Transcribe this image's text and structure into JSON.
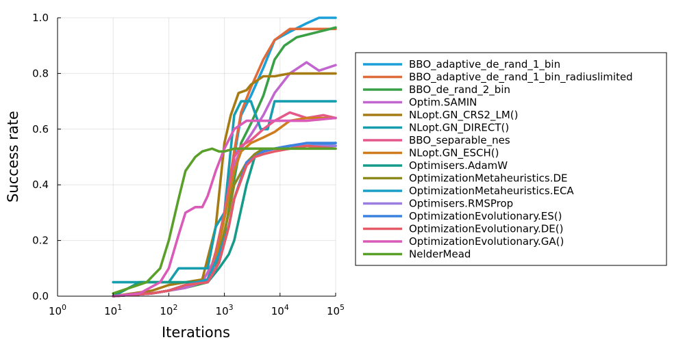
{
  "chart_data": {
    "type": "line",
    "xlabel": "Iterations",
    "ylabel": "Success rate",
    "xscale": "log10",
    "xlim": [
      1,
      100000
    ],
    "ylim": [
      0,
      1
    ],
    "grid": true,
    "legend_position": "right",
    "xticks": [
      {
        "value": 1,
        "base": "10",
        "exp": "0"
      },
      {
        "value": 10,
        "base": "10",
        "exp": "1"
      },
      {
        "value": 100,
        "base": "10",
        "exp": "2"
      },
      {
        "value": 1000,
        "base": "10",
        "exp": "3"
      },
      {
        "value": 10000,
        "base": "10",
        "exp": "4"
      },
      {
        "value": 100000,
        "base": "10",
        "exp": "5"
      }
    ],
    "yticks": [
      {
        "value": 0.0,
        "label": "0.0"
      },
      {
        "value": 0.2,
        "label": "0.2"
      },
      {
        "value": 0.4,
        "label": "0.4"
      },
      {
        "value": 0.6,
        "label": "0.6"
      },
      {
        "value": 0.8,
        "label": "0.8"
      },
      {
        "value": 1.0,
        "label": "1.0"
      }
    ],
    "series": [
      {
        "name": "BBO_adaptive_de_rand_1_bin",
        "color": "#1a9fd9",
        "points": [
          [
            10,
            0.0
          ],
          [
            50,
            0.01
          ],
          [
            100,
            0.02
          ],
          [
            200,
            0.04
          ],
          [
            500,
            0.06
          ],
          [
            700,
            0.14
          ],
          [
            1000,
            0.28
          ],
          [
            1500,
            0.5
          ],
          [
            2000,
            0.65
          ],
          [
            3000,
            0.72
          ],
          [
            5000,
            0.82
          ],
          [
            8000,
            0.92
          ],
          [
            15000,
            0.95
          ],
          [
            30000,
            0.98
          ],
          [
            50000,
            1.0
          ],
          [
            100000,
            1.0
          ]
        ]
      },
      {
        "name": "BBO_adaptive_de_rand_1_bin_radiuslimited",
        "color": "#e06b3a",
        "points": [
          [
            10,
            0.0
          ],
          [
            50,
            0.01
          ],
          [
            100,
            0.02
          ],
          [
            200,
            0.04
          ],
          [
            500,
            0.06
          ],
          [
            700,
            0.16
          ],
          [
            1000,
            0.3
          ],
          [
            1500,
            0.52
          ],
          [
            2000,
            0.66
          ],
          [
            3000,
            0.75
          ],
          [
            5000,
            0.85
          ],
          [
            8000,
            0.92
          ],
          [
            15000,
            0.96
          ],
          [
            30000,
            0.96
          ],
          [
            100000,
            0.96
          ]
        ]
      },
      {
        "name": "BBO_de_rand_2_bin",
        "color": "#3aa046",
        "points": [
          [
            10,
            0.0
          ],
          [
            50,
            0.01
          ],
          [
            100,
            0.02
          ],
          [
            200,
            0.03
          ],
          [
            500,
            0.05
          ],
          [
            700,
            0.1
          ],
          [
            1000,
            0.22
          ],
          [
            1500,
            0.42
          ],
          [
            2000,
            0.55
          ],
          [
            3000,
            0.62
          ],
          [
            5000,
            0.72
          ],
          [
            8000,
            0.85
          ],
          [
            12000,
            0.9
          ],
          [
            20000,
            0.93
          ],
          [
            50000,
            0.95
          ],
          [
            100000,
            0.965
          ]
        ]
      },
      {
        "name": "Optim.SAMIN",
        "color": "#c266cf",
        "points": [
          [
            10,
            0.0
          ],
          [
            50,
            0.01
          ],
          [
            100,
            0.02
          ],
          [
            200,
            0.03
          ],
          [
            400,
            0.05
          ],
          [
            700,
            0.14
          ],
          [
            1000,
            0.3
          ],
          [
            1500,
            0.47
          ],
          [
            2000,
            0.53
          ],
          [
            3000,
            0.58
          ],
          [
            5000,
            0.65
          ],
          [
            8000,
            0.73
          ],
          [
            15000,
            0.8
          ],
          [
            30000,
            0.84
          ],
          [
            50000,
            0.81
          ],
          [
            100000,
            0.83
          ]
        ]
      },
      {
        "name": "NLopt.GN_CRS2_LM()",
        "color": "#a67b14",
        "points": [
          [
            10,
            0.0
          ],
          [
            50,
            0.02
          ],
          [
            100,
            0.04
          ],
          [
            200,
            0.05
          ],
          [
            400,
            0.06
          ],
          [
            700,
            0.25
          ],
          [
            1000,
            0.55
          ],
          [
            1300,
            0.65
          ],
          [
            1800,
            0.73
          ],
          [
            2500,
            0.74
          ],
          [
            3000,
            0.76
          ],
          [
            5000,
            0.79
          ],
          [
            8000,
            0.79
          ],
          [
            15000,
            0.8
          ],
          [
            30000,
            0.8
          ],
          [
            100000,
            0.8
          ]
        ]
      },
      {
        "name": "NLopt.GN_DIRECT()",
        "color": "#169dae",
        "points": [
          [
            10,
            0.05
          ],
          [
            20,
            0.05
          ],
          [
            100,
            0.05
          ],
          [
            150,
            0.1
          ],
          [
            500,
            0.1
          ],
          [
            700,
            0.25
          ],
          [
            1000,
            0.3
          ],
          [
            1500,
            0.65
          ],
          [
            2000,
            0.7
          ],
          [
            3000,
            0.7
          ],
          [
            4500,
            0.6
          ],
          [
            6000,
            0.6
          ],
          [
            8000,
            0.7
          ],
          [
            100000,
            0.7
          ]
        ]
      },
      {
        "name": "BBO_separable_nes",
        "color": "#e4588a",
        "points": [
          [
            10,
            0.0
          ],
          [
            50,
            0.01
          ],
          [
            100,
            0.02
          ],
          [
            200,
            0.04
          ],
          [
            500,
            0.06
          ],
          [
            700,
            0.15
          ],
          [
            1000,
            0.3
          ],
          [
            1500,
            0.5
          ],
          [
            2000,
            0.54
          ],
          [
            3000,
            0.56
          ],
          [
            5000,
            0.6
          ],
          [
            8000,
            0.63
          ],
          [
            15000,
            0.66
          ],
          [
            30000,
            0.64
          ],
          [
            60000,
            0.65
          ],
          [
            100000,
            0.64
          ]
        ]
      },
      {
        "name": "NLopt.GN_ESCH()",
        "color": "#cf7c1f",
        "points": [
          [
            10,
            0.0
          ],
          [
            50,
            0.01
          ],
          [
            100,
            0.02
          ],
          [
            200,
            0.04
          ],
          [
            500,
            0.05
          ],
          [
            700,
            0.13
          ],
          [
            1000,
            0.28
          ],
          [
            1500,
            0.45
          ],
          [
            2000,
            0.52
          ],
          [
            3000,
            0.55
          ],
          [
            5000,
            0.57
          ],
          [
            8000,
            0.59
          ],
          [
            15000,
            0.63
          ],
          [
            30000,
            0.64
          ],
          [
            100000,
            0.64
          ]
        ]
      },
      {
        "name": "Optimisers.AdamW",
        "color": "#169a8a",
        "points": [
          [
            10,
            0.0
          ],
          [
            30,
            0.05
          ],
          [
            100,
            0.05
          ],
          [
            200,
            0.05
          ],
          [
            500,
            0.05
          ],
          [
            800,
            0.1
          ],
          [
            1200,
            0.15
          ],
          [
            1500,
            0.2
          ],
          [
            2500,
            0.4
          ],
          [
            3500,
            0.5
          ],
          [
            5000,
            0.52
          ],
          [
            8000,
            0.53
          ],
          [
            15000,
            0.54
          ],
          [
            30000,
            0.54
          ],
          [
            100000,
            0.54
          ]
        ]
      },
      {
        "name": "OptimizationMetaheuristics.DE",
        "color": "#8a8a1e",
        "points": [
          [
            10,
            0.0
          ],
          [
            50,
            0.01
          ],
          [
            100,
            0.02
          ],
          [
            200,
            0.04
          ],
          [
            500,
            0.06
          ],
          [
            800,
            0.15
          ],
          [
            1200,
            0.3
          ],
          [
            1500,
            0.4
          ],
          [
            2500,
            0.48
          ],
          [
            3500,
            0.51
          ],
          [
            5000,
            0.53
          ],
          [
            8000,
            0.53
          ],
          [
            15000,
            0.53
          ],
          [
            30000,
            0.54
          ],
          [
            100000,
            0.54
          ]
        ]
      },
      {
        "name": "OptimizationMetaheuristics.ECA",
        "color": "#1a9ec6",
        "points": [
          [
            10,
            0.0
          ],
          [
            50,
            0.01
          ],
          [
            100,
            0.02
          ],
          [
            200,
            0.04
          ],
          [
            500,
            0.06
          ],
          [
            800,
            0.15
          ],
          [
            1200,
            0.25
          ],
          [
            1500,
            0.35
          ],
          [
            2500,
            0.48
          ],
          [
            3500,
            0.5
          ],
          [
            5000,
            0.52
          ],
          [
            8000,
            0.53
          ],
          [
            15000,
            0.54
          ],
          [
            30000,
            0.54
          ],
          [
            100000,
            0.55
          ]
        ]
      },
      {
        "name": "Optimisers.RMSProp",
        "color": "#9b7de0",
        "points": [
          [
            10,
            0.0
          ],
          [
            50,
            0.01
          ],
          [
            100,
            0.02
          ],
          [
            200,
            0.04
          ],
          [
            500,
            0.05
          ],
          [
            800,
            0.12
          ],
          [
            1200,
            0.25
          ],
          [
            1500,
            0.35
          ],
          [
            2500,
            0.47
          ],
          [
            3500,
            0.5
          ],
          [
            5000,
            0.52
          ],
          [
            8000,
            0.53
          ],
          [
            15000,
            0.54
          ],
          [
            30000,
            0.54
          ],
          [
            100000,
            0.54
          ]
        ]
      },
      {
        "name": "OptimizationEvolutionary.ES()",
        "color": "#3c82e0",
        "points": [
          [
            10,
            0.0
          ],
          [
            50,
            0.01
          ],
          [
            100,
            0.02
          ],
          [
            200,
            0.04
          ],
          [
            500,
            0.05
          ],
          [
            800,
            0.12
          ],
          [
            1200,
            0.25
          ],
          [
            1500,
            0.35
          ],
          [
            2500,
            0.48
          ],
          [
            3500,
            0.5
          ],
          [
            5000,
            0.52
          ],
          [
            8000,
            0.53
          ],
          [
            15000,
            0.54
          ],
          [
            30000,
            0.55
          ],
          [
            100000,
            0.55
          ]
        ]
      },
      {
        "name": "OptimizationEvolutionary.DE()",
        "color": "#e55a66",
        "points": [
          [
            10,
            0.0
          ],
          [
            50,
            0.01
          ],
          [
            100,
            0.02
          ],
          [
            200,
            0.04
          ],
          [
            500,
            0.05
          ],
          [
            800,
            0.12
          ],
          [
            1200,
            0.25
          ],
          [
            1500,
            0.35
          ],
          [
            2500,
            0.47
          ],
          [
            3500,
            0.5
          ],
          [
            5000,
            0.51
          ],
          [
            8000,
            0.52
          ],
          [
            15000,
            0.53
          ],
          [
            30000,
            0.54
          ],
          [
            100000,
            0.53
          ]
        ]
      },
      {
        "name": "OptimizationEvolutionary.GA()",
        "color": "#d95ab8",
        "points": [
          [
            10,
            0.0
          ],
          [
            30,
            0.01
          ],
          [
            70,
            0.05
          ],
          [
            100,
            0.1
          ],
          [
            150,
            0.22
          ],
          [
            200,
            0.3
          ],
          [
            300,
            0.32
          ],
          [
            400,
            0.32
          ],
          [
            500,
            0.36
          ],
          [
            700,
            0.45
          ],
          [
            1000,
            0.53
          ],
          [
            1500,
            0.6
          ],
          [
            2500,
            0.63
          ],
          [
            5000,
            0.63
          ],
          [
            10000,
            0.63
          ],
          [
            30000,
            0.63
          ],
          [
            100000,
            0.64
          ]
        ]
      },
      {
        "name": "NelderMead",
        "color": "#5a9f2a",
        "points": [
          [
            10,
            0.01
          ],
          [
            20,
            0.03
          ],
          [
            40,
            0.05
          ],
          [
            70,
            0.1
          ],
          [
            100,
            0.2
          ],
          [
            150,
            0.35
          ],
          [
            200,
            0.45
          ],
          [
            300,
            0.5
          ],
          [
            400,
            0.52
          ],
          [
            600,
            0.53
          ],
          [
            800,
            0.52
          ],
          [
            1000,
            0.52
          ],
          [
            1500,
            0.53
          ],
          [
            3000,
            0.53
          ],
          [
            5000,
            0.53
          ],
          [
            10000,
            0.53
          ],
          [
            30000,
            0.53
          ],
          [
            100000,
            0.53
          ]
        ]
      }
    ]
  }
}
